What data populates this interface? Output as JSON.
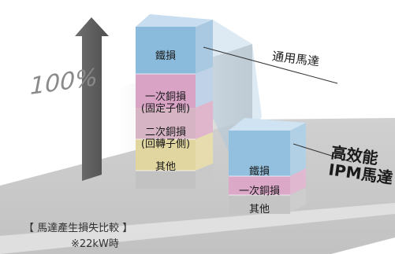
{
  "scale_label": "100%",
  "general_motor": {
    "name": "通用馬達",
    "segments": [
      {
        "label": "鐵損",
        "color": "#7fb6d9"
      },
      {
        "label_lines": [
          "一次銅損",
          "(固定子側)"
        ],
        "color": "#d89bbf"
      },
      {
        "label_lines": [
          "二次銅損",
          "(回轉子側)"
        ],
        "color": "#ddd39a"
      },
      {
        "label": "其他",
        "color": "#bdbdbd"
      }
    ]
  },
  "ipm_motor": {
    "name_lines": [
      "高效能",
      "IPM馬達"
    ],
    "segments": [
      {
        "label": "鐵損",
        "color": "#7fb6d9"
      },
      {
        "label": "一次銅損",
        "color": "#d89bbf"
      },
      {
        "label": "其他",
        "color": "#bdbdbd"
      }
    ]
  },
  "caption": {
    "title": "【 馬達產生損失比較 】",
    "note": "※22kW時"
  }
}
